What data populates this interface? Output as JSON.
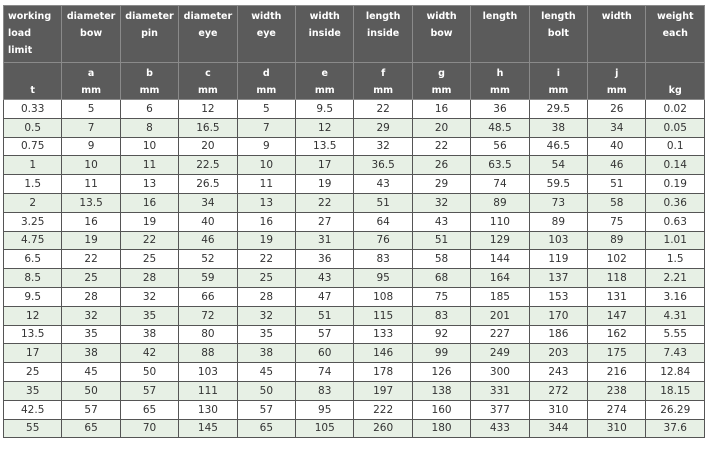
{
  "table": {
    "headers": [
      {
        "label": "working load limit",
        "letter": "",
        "unit": "t"
      },
      {
        "label": "diameter bow",
        "letter": "a",
        "unit": "mm"
      },
      {
        "label": "diameter pin",
        "letter": "b",
        "unit": "mm"
      },
      {
        "label": "diameter eye",
        "letter": "c",
        "unit": "mm"
      },
      {
        "label": "width eye",
        "letter": "d",
        "unit": "mm"
      },
      {
        "label": "width inside",
        "letter": "e",
        "unit": "mm"
      },
      {
        "label": "length inside",
        "letter": "f",
        "unit": "mm"
      },
      {
        "label": "width bow",
        "letter": "g",
        "unit": "mm"
      },
      {
        "label": "length",
        "letter": "h",
        "unit": "mm"
      },
      {
        "label": "length bolt",
        "letter": "i",
        "unit": "mm"
      },
      {
        "label": "width",
        "letter": "j",
        "unit": "mm"
      },
      {
        "label": "weight each",
        "letter": "",
        "unit": "kg"
      }
    ],
    "rows": [
      [
        "0.33",
        "5",
        "6",
        "12",
        "5",
        "9.5",
        "22",
        "16",
        "36",
        "29.5",
        "26",
        "0.02"
      ],
      [
        "0.5",
        "7",
        "8",
        "16.5",
        "7",
        "12",
        "29",
        "20",
        "48.5",
        "38",
        "34",
        "0.05"
      ],
      [
        "0.75",
        "9",
        "10",
        "20",
        "9",
        "13.5",
        "32",
        "22",
        "56",
        "46.5",
        "40",
        "0.1"
      ],
      [
        "1",
        "10",
        "11",
        "22.5",
        "10",
        "17",
        "36.5",
        "26",
        "63.5",
        "54",
        "46",
        "0.14"
      ],
      [
        "1.5",
        "11",
        "13",
        "26.5",
        "11",
        "19",
        "43",
        "29",
        "74",
        "59.5",
        "51",
        "0.19"
      ],
      [
        "2",
        "13.5",
        "16",
        "34",
        "13",
        "22",
        "51",
        "32",
        "89",
        "73",
        "58",
        "0.36"
      ],
      [
        "3.25",
        "16",
        "19",
        "40",
        "16",
        "27",
        "64",
        "43",
        "110",
        "89",
        "75",
        "0.63"
      ],
      [
        "4.75",
        "19",
        "22",
        "46",
        "19",
        "31",
        "76",
        "51",
        "129",
        "103",
        "89",
        "1.01"
      ],
      [
        "6.5",
        "22",
        "25",
        "52",
        "22",
        "36",
        "83",
        "58",
        "144",
        "119",
        "102",
        "1.5"
      ],
      [
        "8.5",
        "25",
        "28",
        "59",
        "25",
        "43",
        "95",
        "68",
        "164",
        "137",
        "118",
        "2.21"
      ],
      [
        "9.5",
        "28",
        "32",
        "66",
        "28",
        "47",
        "108",
        "75",
        "185",
        "153",
        "131",
        "3.16"
      ],
      [
        "12",
        "32",
        "35",
        "72",
        "32",
        "51",
        "115",
        "83",
        "201",
        "170",
        "147",
        "4.31"
      ],
      [
        "13.5",
        "35",
        "38",
        "80",
        "35",
        "57",
        "133",
        "92",
        "227",
        "186",
        "162",
        "5.55"
      ],
      [
        "17",
        "38",
        "42",
        "88",
        "38",
        "60",
        "146",
        "99",
        "249",
        "203",
        "175",
        "7.43"
      ],
      [
        "25",
        "45",
        "50",
        "103",
        "45",
        "74",
        "178",
        "126",
        "300",
        "243",
        "216",
        "12.84"
      ],
      [
        "35",
        "50",
        "57",
        "111",
        "50",
        "83",
        "197",
        "138",
        "331",
        "272",
        "238",
        "18.15"
      ],
      [
        "42.5",
        "57",
        "65",
        "130",
        "57",
        "95",
        "222",
        "160",
        "377",
        "310",
        "274",
        "26.29"
      ],
      [
        "55",
        "65",
        "70",
        "145",
        "65",
        "105",
        "260",
        "180",
        "433",
        "344",
        "310",
        "37.6"
      ]
    ]
  },
  "colors": {
    "header_bg": "#5b5b5b",
    "row_alt_bg": "#e7f0e5",
    "row_bg": "#ffffff"
  }
}
